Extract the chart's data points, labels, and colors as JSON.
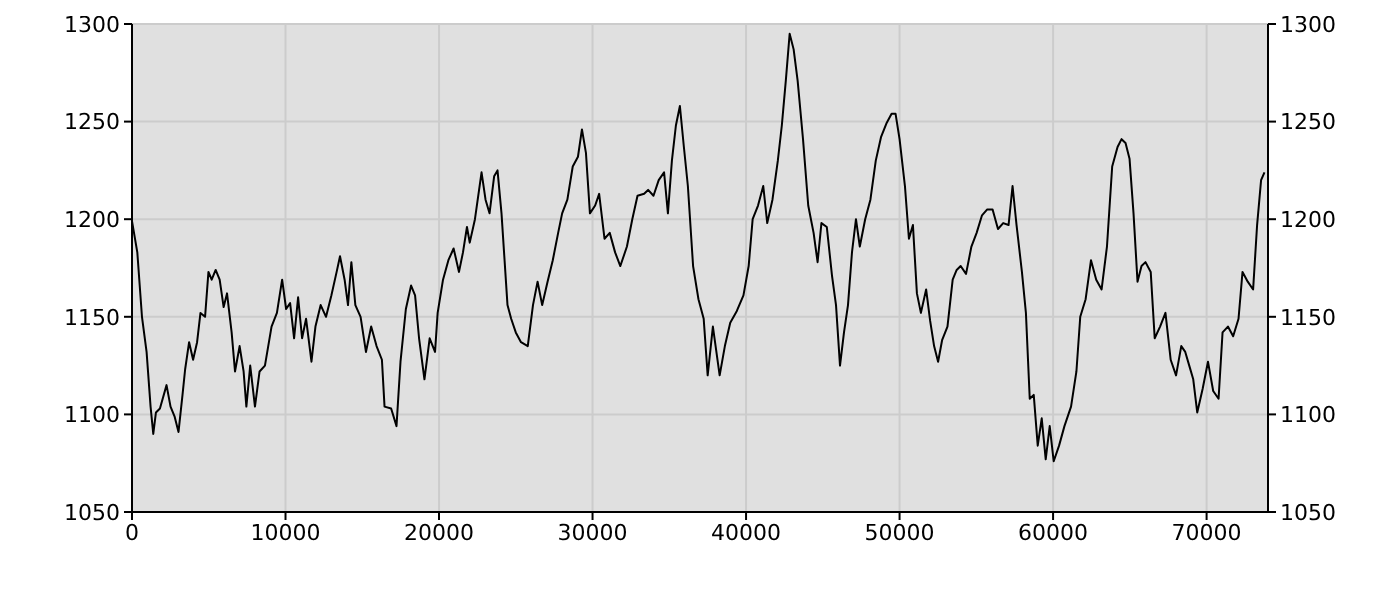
{
  "chart_data": {
    "type": "line",
    "x": [
      0,
      346,
      650,
      950,
      1210,
      1385,
      1560,
      1820,
      2250,
      2510,
      2770,
      3030,
      3290,
      3460,
      3720,
      3980,
      4240,
      4460,
      4760,
      4980,
      5190,
      5450,
      5710,
      5970,
      6190,
      6490,
      6710,
      7010,
      7270,
      7450,
      7700,
      8010,
      8310,
      8660,
      9090,
      9440,
      9780,
      10040,
      10300,
      10560,
      10820,
      11080,
      11340,
      11690,
      11950,
      12290,
      12640,
      12990,
      13330,
      13550,
      13850,
      14070,
      14290,
      14550,
      14890,
      15240,
      15580,
      15930,
      16280,
      16450,
      16880,
      17230,
      17490,
      17840,
      18180,
      18440,
      18700,
      19050,
      19390,
      19740,
      19910,
      20260,
      20610,
      20950,
      21300,
      21560,
      21820,
      22000,
      22340,
      22770,
      23030,
      23290,
      23590,
      23810,
      24070,
      24460,
      24700,
      25000,
      25340,
      25780,
      26120,
      26420,
      26720,
      27070,
      27410,
      27760,
      28020,
      28360,
      28710,
      29050,
      29310,
      29570,
      29830,
      30170,
      30430,
      30780,
      31120,
      31470,
      31810,
      32240,
      32590,
      32930,
      33360,
      33620,
      33970,
      34310,
      34660,
      34910,
      35170,
      35430,
      35690,
      35950,
      36210,
      36550,
      36900,
      37240,
      37500,
      37840,
      38280,
      38620,
      38970,
      39400,
      39830,
      40170,
      40430,
      40780,
      41120,
      41380,
      41720,
      42070,
      42330,
      42590,
      42840,
      43100,
      43360,
      43710,
      44050,
      44400,
      44660,
      44910,
      45260,
      45600,
      45860,
      46120,
      46380,
      46640,
      46900,
      47160,
      47410,
      47760,
      48100,
      48450,
      48790,
      49140,
      49480,
      49740,
      50000,
      50350,
      50610,
      50870,
      51130,
      51390,
      51730,
      51990,
      52250,
      52510,
      52770,
      53120,
      53460,
      53720,
      53980,
      54330,
      54680,
      55020,
      55370,
      55710,
      56060,
      56410,
      56750,
      57100,
      57360,
      57620,
      57970,
      58230,
      58480,
      58740,
      59000,
      59260,
      59520,
      59780,
      60040,
      60390,
      60740,
      61170,
      61520,
      61770,
      62120,
      62470,
      62810,
      63160,
      63510,
      63850,
      64200,
      64460,
      64720,
      64980,
      65240,
      65500,
      65760,
      66020,
      66360,
      66620,
      66970,
      67320,
      67660,
      68010,
      68350,
      68610,
      68870,
      69130,
      69390,
      69740,
      70090,
      70430,
      70780,
      71040,
      71390,
      71730,
      72080,
      72340,
      72680,
      73030,
      73290,
      73550,
      73770
    ],
    "series": [
      {
        "color": "#000000",
        "values": [
          1199,
          1183,
          1150,
          1132,
          1104,
          1090,
          1101,
          1103,
          1115,
          1104,
          1099,
          1091,
          1110,
          1123,
          1137,
          1128,
          1137,
          1152,
          1150,
          1173,
          1169,
          1174,
          1169,
          1155,
          1162,
          1142,
          1122,
          1135,
          1122,
          1104,
          1125,
          1104,
          1122,
          1125,
          1145,
          1152,
          1169,
          1154,
          1157,
          1139,
          1160,
          1139,
          1149,
          1127,
          1145,
          1156,
          1150,
          1161,
          1173,
          1181,
          1169,
          1156,
          1178,
          1156,
          1150,
          1132,
          1145,
          1135,
          1128,
          1104,
          1103,
          1094,
          1127,
          1154,
          1166,
          1161,
          1139,
          1118,
          1139,
          1132,
          1152,
          1169,
          1179,
          1185,
          1173,
          1183,
          1196,
          1188,
          1200,
          1224,
          1210,
          1203,
          1222,
          1225,
          1203,
          1156,
          1149,
          1142,
          1137,
          1135,
          1156,
          1168,
          1156,
          1168,
          1179,
          1193,
          1203,
          1210,
          1227,
          1232,
          1246,
          1234,
          1203,
          1207,
          1213,
          1190,
          1193,
          1183,
          1176,
          1186,
          1200,
          1212,
          1213,
          1215,
          1212,
          1220,
          1224,
          1203,
          1230,
          1248,
          1258,
          1237,
          1217,
          1176,
          1159,
          1149,
          1120,
          1145,
          1120,
          1135,
          1147,
          1153,
          1161,
          1176,
          1200,
          1207,
          1217,
          1198,
          1210,
          1230,
          1248,
          1271,
          1295,
          1287,
          1271,
          1241,
          1207,
          1193,
          1178,
          1198,
          1196,
          1171,
          1156,
          1125,
          1142,
          1156,
          1183,
          1200,
          1186,
          1200,
          1210,
          1230,
          1242,
          1249,
          1254,
          1254,
          1241,
          1217,
          1190,
          1197,
          1162,
          1152,
          1164,
          1148,
          1135,
          1127,
          1138,
          1145,
          1169,
          1174,
          1176,
          1172,
          1186,
          1193,
          1202,
          1205,
          1205,
          1195,
          1198,
          1197,
          1217,
          1197,
          1173,
          1152,
          1108,
          1110,
          1084,
          1098,
          1077,
          1094,
          1076,
          1084,
          1094,
          1104,
          1122,
          1150,
          1159,
          1179,
          1169,
          1164,
          1186,
          1227,
          1237,
          1241,
          1239,
          1231,
          1203,
          1168,
          1176,
          1178,
          1173,
          1139,
          1145,
          1152,
          1128,
          1120,
          1135,
          1132,
          1125,
          1118,
          1101,
          1113,
          1127,
          1112,
          1108,
          1142,
          1145,
          1140,
          1149,
          1173,
          1168,
          1164,
          1197,
          1220,
          1224
        ]
      }
    ],
    "xlim": [
      0,
      74000
    ],
    "xticks": [
      0,
      10000,
      20000,
      30000,
      40000,
      50000,
      60000,
      70000
    ],
    "ylim": [
      1050,
      1300
    ],
    "yticks": [
      1050,
      1100,
      1150,
      1200,
      1250,
      1300
    ],
    "y2lim": [
      1050,
      1300
    ],
    "y2ticks": [
      1050,
      1100,
      1150,
      1200,
      1250,
      1300
    ],
    "grid": true,
    "marker": "none",
    "line_style": "solid"
  }
}
